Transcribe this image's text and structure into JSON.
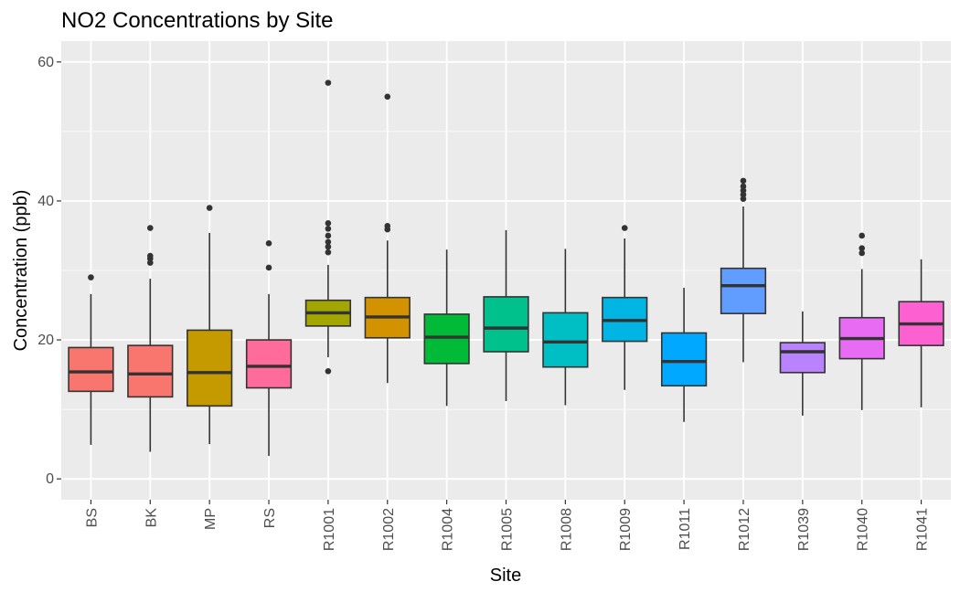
{
  "chart_data": {
    "type": "boxplot",
    "title": "NO2 Concentrations by Site",
    "xlabel": "Site",
    "ylabel": "Concentration (ppb)",
    "ylim": [
      -3,
      63
    ],
    "yticks": [
      0,
      20,
      40,
      60
    ],
    "grid": true,
    "legend": "none",
    "categories": [
      "BS",
      "BK",
      "MP",
      "RS",
      "R1001",
      "R1002",
      "R1004",
      "R1005",
      "R1008",
      "R1009",
      "R1011",
      "R1012",
      "R1039",
      "R1040",
      "R1041"
    ],
    "colors": [
      "#F8766D",
      "#F8766D",
      "#C49A00",
      "#FF6C9C",
      "#A3A500",
      "#D39200",
      "#00BA38",
      "#00C08B",
      "#00BFC4",
      "#00B4E4",
      "#00A9FF",
      "#619CFF",
      "#B983FF",
      "#E76BF3",
      "#FD61D1"
    ],
    "boxes": [
      {
        "site": "BS",
        "whisker_low": 4.9,
        "q1": 12.6,
        "median": 15.4,
        "q3": 18.9,
        "whisker_high": 26.6,
        "outliers": [
          29.0
        ]
      },
      {
        "site": "BK",
        "whisker_low": 3.9,
        "q1": 11.8,
        "median": 15.1,
        "q3": 19.2,
        "whisker_high": 28.8,
        "outliers": [
          31.1,
          31.7,
          32.1,
          36.1
        ]
      },
      {
        "site": "MP",
        "whisker_low": 5.0,
        "q1": 10.5,
        "median": 15.3,
        "q3": 21.4,
        "whisker_high": 35.4,
        "outliers": [
          39.0
        ]
      },
      {
        "site": "RS",
        "whisker_low": 3.3,
        "q1": 13.1,
        "median": 16.2,
        "q3": 20.0,
        "whisker_high": 26.6,
        "outliers": [
          30.4,
          33.9
        ]
      },
      {
        "site": "R1001",
        "whisker_low": 17.5,
        "q1": 22.0,
        "median": 23.9,
        "q3": 25.7,
        "whisker_high": 30.8,
        "outliers": [
          15.5,
          32.6,
          33.4,
          34.1,
          35.0,
          36.0,
          36.8,
          57.0
        ]
      },
      {
        "site": "R1002",
        "whisker_low": 13.8,
        "q1": 20.3,
        "median": 23.3,
        "q3": 26.1,
        "whisker_high": 34.3,
        "outliers": [
          35.9,
          36.4,
          55.0
        ]
      },
      {
        "site": "R1004",
        "whisker_low": 10.5,
        "q1": 16.6,
        "median": 20.4,
        "q3": 23.7,
        "whisker_high": 33.0,
        "outliers": []
      },
      {
        "site": "R1005",
        "whisker_low": 11.2,
        "q1": 18.3,
        "median": 21.7,
        "q3": 26.2,
        "whisker_high": 35.8,
        "outliers": []
      },
      {
        "site": "R1008",
        "whisker_low": 10.6,
        "q1": 16.1,
        "median": 19.7,
        "q3": 23.9,
        "whisker_high": 33.1,
        "outliers": []
      },
      {
        "site": "R1009",
        "whisker_low": 12.8,
        "q1": 19.8,
        "median": 22.8,
        "q3": 26.1,
        "whisker_high": 34.6,
        "outliers": [
          36.1
        ]
      },
      {
        "site": "R1011",
        "whisker_low": 8.2,
        "q1": 13.4,
        "median": 16.9,
        "q3": 21.0,
        "whisker_high": 27.5,
        "outliers": []
      },
      {
        "site": "R1012",
        "whisker_low": 16.8,
        "q1": 23.8,
        "median": 27.8,
        "q3": 30.3,
        "whisker_high": 39.2,
        "outliers": [
          40.3,
          40.9,
          41.5,
          42.1,
          42.9
        ]
      },
      {
        "site": "R1039",
        "whisker_low": 9.1,
        "q1": 15.3,
        "median": 18.3,
        "q3": 19.6,
        "whisker_high": 24.1,
        "outliers": []
      },
      {
        "site": "R1040",
        "whisker_low": 9.9,
        "q1": 17.3,
        "median": 20.2,
        "q3": 23.2,
        "whisker_high": 30.2,
        "outliers": [
          32.5,
          33.2,
          35.0
        ]
      },
      {
        "site": "R1041",
        "whisker_low": 10.3,
        "q1": 19.2,
        "median": 22.3,
        "q3": 25.5,
        "whisker_high": 31.6,
        "outliers": []
      }
    ]
  }
}
